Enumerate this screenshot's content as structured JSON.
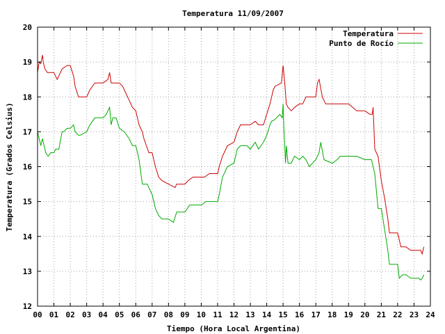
{
  "chart_data": {
    "type": "line",
    "title": "Temperatura 11/09/2007",
    "xlabel": "Tiempo (Hora Local Argentina)",
    "ylabel": "Temperatura (Grados Celsius)",
    "xlim": [
      0,
      24
    ],
    "ylim": [
      12,
      20
    ],
    "xticks": [
      0,
      1,
      2,
      3,
      4,
      5,
      6,
      7,
      8,
      9,
      10,
      11,
      12,
      13,
      14,
      15,
      16,
      17,
      18,
      19,
      20,
      21,
      22,
      23,
      24
    ],
    "xtick_labels": [
      "00",
      "01",
      "02",
      "03",
      "04",
      "05",
      "06",
      "07",
      "08",
      "09",
      "10",
      "11",
      "12",
      "13",
      "14",
      "15",
      "16",
      "17",
      "18",
      "19",
      "20",
      "21",
      "22",
      "23",
      "24"
    ],
    "yticks": [
      12,
      13,
      14,
      15,
      16,
      17,
      18,
      19,
      20
    ],
    "ytick_labels": [
      "12",
      "13",
      "14",
      "15",
      "16",
      "17",
      "18",
      "19",
      "20"
    ],
    "grid": true,
    "legend_position": "top-right",
    "series": [
      {
        "name": "Temperatura",
        "color": "#cc0000",
        "x": [
          0,
          0.1,
          0.2,
          0.3,
          0.35,
          0.45,
          0.6,
          1.0,
          1.2,
          1.3,
          1.5,
          1.8,
          2.0,
          2.2,
          2.3,
          2.5,
          2.6,
          3.0,
          3.2,
          3.5,
          4.0,
          4.3,
          4.4,
          4.5,
          4.6,
          5.0,
          5.2,
          5.5,
          5.8,
          6.0,
          6.1,
          6.2,
          6.4,
          6.5,
          6.8,
          7.0,
          7.2,
          7.4,
          7.6,
          8.0,
          8.4,
          8.5,
          9.0,
          9.2,
          9.5,
          10.0,
          10.2,
          10.5,
          11.0,
          11.1,
          11.3,
          11.6,
          12.0,
          12.2,
          12.4,
          12.6,
          13.0,
          13.3,
          13.5,
          13.8,
          14.0,
          14.2,
          14.4,
          14.5,
          14.7,
          14.9,
          15.0,
          15.1,
          15.2,
          15.3,
          15.5,
          15.7,
          16.0,
          16.2,
          16.4,
          16.7,
          17.0,
          17.1,
          17.2,
          17.4,
          17.6,
          18.0,
          18.5,
          19.0,
          19.5,
          20.0,
          20.3,
          20.45,
          20.5,
          20.6,
          20.7,
          20.8,
          21.0,
          21.2,
          21.4,
          21.5,
          21.7,
          22.0,
          22.2,
          22.5,
          22.8,
          23.0,
          23.3,
          23.4,
          23.5,
          23.6
        ],
        "values": [
          18.7,
          19.0,
          18.95,
          19.2,
          19.0,
          18.8,
          18.7,
          18.7,
          18.5,
          18.6,
          18.8,
          18.9,
          18.9,
          18.6,
          18.3,
          18.0,
          18.0,
          18.0,
          18.2,
          18.4,
          18.4,
          18.5,
          18.7,
          18.4,
          18.4,
          18.4,
          18.3,
          18.0,
          17.7,
          17.6,
          17.4,
          17.2,
          17.0,
          16.8,
          16.4,
          16.4,
          16.0,
          15.7,
          15.6,
          15.5,
          15.4,
          15.5,
          15.5,
          15.6,
          15.7,
          15.7,
          15.7,
          15.8,
          15.8,
          16.0,
          16.3,
          16.6,
          16.7,
          17.0,
          17.2,
          17.2,
          17.2,
          17.3,
          17.2,
          17.2,
          17.5,
          17.8,
          18.2,
          18.3,
          18.35,
          18.4,
          18.9,
          18.4,
          17.8,
          17.7,
          17.6,
          17.7,
          17.8,
          17.8,
          18.0,
          18.0,
          18.0,
          18.4,
          18.5,
          18.0,
          17.8,
          17.8,
          17.8,
          17.8,
          17.6,
          17.6,
          17.5,
          17.5,
          17.7,
          16.5,
          16.4,
          16.3,
          15.6,
          15.1,
          14.5,
          14.1,
          14.1,
          14.1,
          13.7,
          13.7,
          13.6,
          13.6,
          13.6,
          13.6,
          13.5,
          13.7
        ]
      },
      {
        "name": "Punto de Rocío",
        "color": "#00aa00",
        "x": [
          0,
          0.1,
          0.2,
          0.3,
          0.4,
          0.5,
          0.65,
          0.8,
          1.0,
          1.1,
          1.3,
          1.5,
          1.6,
          1.8,
          2.0,
          2.2,
          2.3,
          2.5,
          2.6,
          3.0,
          3.2,
          3.5,
          4.0,
          4.2,
          4.3,
          4.4,
          4.5,
          4.6,
          4.8,
          5.0,
          5.3,
          5.6,
          5.8,
          6.0,
          6.2,
          6.4,
          6.5,
          6.7,
          7.0,
          7.2,
          7.4,
          7.6,
          8.0,
          8.3,
          8.5,
          8.7,
          9.0,
          9.3,
          9.5,
          10.0,
          10.3,
          10.6,
          11.0,
          11.1,
          11.3,
          11.6,
          12.0,
          12.2,
          12.4,
          12.8,
          13.0,
          13.3,
          13.5,
          13.8,
          14.0,
          14.2,
          14.3,
          14.5,
          14.8,
          14.95,
          15.0,
          15.05,
          15.1,
          15.15,
          15.2,
          15.3,
          15.5,
          15.7,
          16.0,
          16.2,
          16.4,
          16.6,
          17.0,
          17.2,
          17.3,
          17.5,
          18.0,
          18.3,
          18.5,
          19.0,
          19.5,
          20.0,
          20.4,
          20.5,
          20.6,
          20.8,
          21.0,
          21.2,
          21.4,
          21.5,
          21.7,
          22.0,
          22.1,
          22.3,
          22.5,
          22.8,
          23.0,
          23.3,
          23.4,
          23.5,
          23.6
        ],
        "values": [
          17.0,
          16.8,
          16.6,
          16.8,
          16.6,
          16.4,
          16.3,
          16.4,
          16.4,
          16.5,
          16.5,
          17.0,
          17.0,
          17.1,
          17.1,
          17.2,
          17.0,
          16.9,
          16.9,
          17.0,
          17.2,
          17.4,
          17.4,
          17.5,
          17.6,
          17.7,
          17.2,
          17.4,
          17.4,
          17.1,
          17.0,
          16.8,
          16.6,
          16.6,
          16.2,
          15.5,
          15.5,
          15.5,
          15.2,
          14.8,
          14.6,
          14.5,
          14.5,
          14.4,
          14.7,
          14.7,
          14.7,
          14.9,
          14.9,
          14.9,
          15.0,
          15.0,
          15.0,
          15.2,
          15.7,
          16.0,
          16.1,
          16.5,
          16.6,
          16.6,
          16.5,
          16.7,
          16.5,
          16.7,
          16.9,
          17.2,
          17.3,
          17.35,
          17.5,
          17.4,
          17.8,
          17.1,
          16.6,
          16.1,
          16.6,
          16.1,
          16.1,
          16.3,
          16.2,
          16.3,
          16.2,
          16.0,
          16.2,
          16.4,
          16.7,
          16.2,
          16.1,
          16.2,
          16.3,
          16.3,
          16.3,
          16.2,
          16.2,
          16.0,
          15.8,
          14.8,
          14.8,
          14.2,
          13.6,
          13.2,
          13.2,
          13.2,
          12.8,
          12.9,
          12.9,
          12.8,
          12.8,
          12.8,
          12.75,
          12.8,
          12.9
        ]
      }
    ]
  }
}
